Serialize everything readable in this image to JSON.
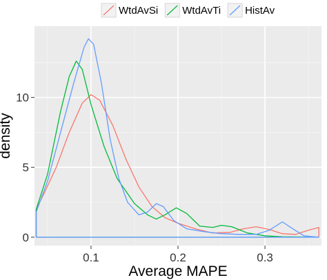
{
  "chart_data": {
    "type": "line",
    "xlabel": "Average MAPE",
    "ylabel": "density",
    "xlim": [
      0.035,
      0.365
    ],
    "ylim": [
      -0.6,
      15.1
    ],
    "x_ticks": [
      {
        "value": 0.1,
        "label": "0.1"
      },
      {
        "value": 0.2,
        "label": "0.2"
      },
      {
        "value": 0.3,
        "label": "0.3"
      }
    ],
    "y_ticks": [
      {
        "value": 0,
        "label": "0"
      },
      {
        "value": 5,
        "label": "5"
      },
      {
        "value": 10,
        "label": "10"
      }
    ],
    "grid": true,
    "background": "#ebebeb",
    "legend_position": "top",
    "series": [
      {
        "name": "WtdAvSi",
        "color": "#f8766d",
        "points": [
          [
            0.037,
            2.0
          ],
          [
            0.045,
            3.0
          ],
          [
            0.06,
            5.0
          ],
          [
            0.075,
            7.5
          ],
          [
            0.09,
            9.6
          ],
          [
            0.1,
            10.2
          ],
          [
            0.11,
            9.8
          ],
          [
            0.125,
            8.0
          ],
          [
            0.14,
            5.6
          ],
          [
            0.155,
            3.6
          ],
          [
            0.17,
            2.2
          ],
          [
            0.185,
            1.4
          ],
          [
            0.2,
            1.0
          ],
          [
            0.22,
            0.6
          ],
          [
            0.24,
            0.3
          ],
          [
            0.26,
            0.35
          ],
          [
            0.275,
            0.6
          ],
          [
            0.29,
            0.75
          ],
          [
            0.305,
            0.55
          ],
          [
            0.32,
            0.25
          ],
          [
            0.335,
            0.2
          ],
          [
            0.35,
            0.5
          ],
          [
            0.362,
            0.7
          ]
        ]
      },
      {
        "name": "WtdAvTi",
        "color": "#00ba38",
        "points": [
          [
            0.037,
            2.0
          ],
          [
            0.05,
            4.5
          ],
          [
            0.065,
            9.0
          ],
          [
            0.075,
            11.5
          ],
          [
            0.083,
            12.6
          ],
          [
            0.09,
            12.0
          ],
          [
            0.1,
            9.5
          ],
          [
            0.115,
            6.5
          ],
          [
            0.13,
            4.2
          ],
          [
            0.15,
            2.4
          ],
          [
            0.165,
            1.6
          ],
          [
            0.175,
            1.3
          ],
          [
            0.185,
            1.6
          ],
          [
            0.198,
            2.1
          ],
          [
            0.21,
            1.7
          ],
          [
            0.225,
            0.8
          ],
          [
            0.24,
            0.7
          ],
          [
            0.25,
            0.85
          ],
          [
            0.262,
            0.75
          ],
          [
            0.28,
            0.3
          ],
          [
            0.3,
            0.1
          ],
          [
            0.32,
            0.03
          ],
          [
            0.362,
            0.0
          ]
        ]
      },
      {
        "name": "HistAv",
        "color": "#619cff",
        "points": [
          [
            0.037,
            1.8
          ],
          [
            0.05,
            4.0
          ],
          [
            0.065,
            7.5
          ],
          [
            0.08,
            11.0
          ],
          [
            0.092,
            13.6
          ],
          [
            0.097,
            14.2
          ],
          [
            0.103,
            13.8
          ],
          [
            0.112,
            11.0
          ],
          [
            0.122,
            7.0
          ],
          [
            0.132,
            4.2
          ],
          [
            0.142,
            2.5
          ],
          [
            0.155,
            1.6
          ],
          [
            0.165,
            1.8
          ],
          [
            0.175,
            2.4
          ],
          [
            0.183,
            2.2
          ],
          [
            0.195,
            1.2
          ],
          [
            0.21,
            0.6
          ],
          [
            0.23,
            0.4
          ],
          [
            0.25,
            0.25
          ],
          [
            0.27,
            0.2
          ],
          [
            0.29,
            0.2
          ],
          [
            0.305,
            0.5
          ],
          [
            0.32,
            1.1
          ],
          [
            0.332,
            0.6
          ],
          [
            0.345,
            0.1
          ],
          [
            0.362,
            0.0
          ]
        ]
      }
    ]
  }
}
